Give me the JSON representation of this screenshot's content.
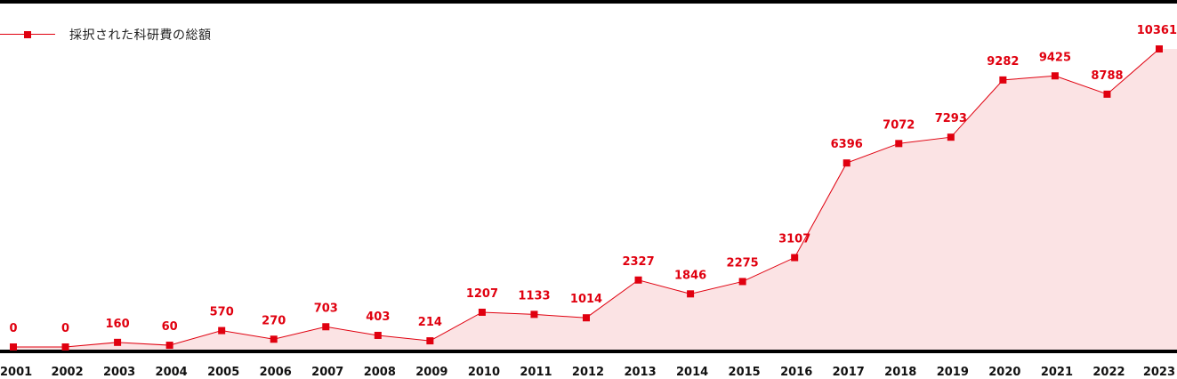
{
  "chart_data": {
    "type": "area",
    "legend": {
      "label": "採択された科研費の総額",
      "position": "top-left"
    },
    "categories": [
      "2001",
      "2002",
      "2003",
      "2004",
      "2005",
      "2006",
      "2007",
      "2008",
      "2009",
      "2010",
      "2011",
      "2012",
      "2013",
      "2014",
      "2015",
      "2016",
      "2017",
      "2018",
      "2019",
      "2020",
      "2021",
      "2022",
      "2023"
    ],
    "series": [
      {
        "name": "採択された科研費の総額",
        "values": [
          0,
          0,
          160,
          60,
          570,
          270,
          703,
          403,
          214,
          1207,
          1133,
          1014,
          2327,
          1846,
          2275,
          3107,
          6396,
          7072,
          7293,
          9282,
          9425,
          8788,
          10361
        ]
      }
    ],
    "ylim": [
      0,
      10361
    ],
    "grid": false,
    "colors": {
      "line": "#e0000f",
      "fill": "#fbe3e4",
      "axis": "#000000"
    }
  }
}
